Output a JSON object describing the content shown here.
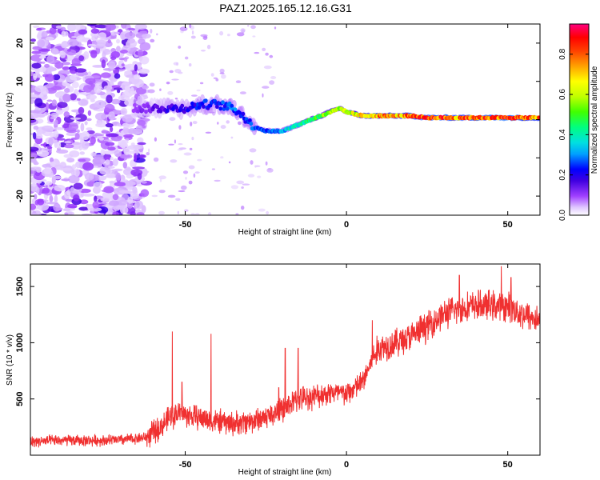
{
  "figure": {
    "title": "PAZ1.2025.165.12.16.G31"
  },
  "chart_data": [
    {
      "type": "heatmap",
      "panel": "top",
      "xlabel": "Height of straight line (km)",
      "ylabel": "Frequency (Hz)",
      "xlim": [
        -98,
        60
      ],
      "ylim": [
        -25,
        25
      ],
      "xticks": [
        -50,
        0,
        50
      ],
      "yticks": [
        -20,
        -10,
        0,
        10,
        20
      ],
      "colorbar": {
        "label": "Normalized spectral amplitude",
        "range": [
          0.0,
          0.95
        ],
        "ticks": [
          "0.0",
          "0.2",
          "0.4",
          "0.6",
          "0.8"
        ],
        "colormap": [
          "#ffffff",
          "#d8b8ff",
          "#a040ff",
          "#5000e0",
          "#0000ff",
          "#00a0ff",
          "#00e0e0",
          "#00ff80",
          "#40ff00",
          "#c0ff00",
          "#ffff00",
          "#ffa000",
          "#ff4000",
          "#ff0000",
          "#ff0080"
        ]
      },
      "ridge": {
        "x": [
          -66,
          -60,
          -55,
          -50,
          -45,
          -40,
          -35,
          -32,
          -30,
          -28,
          -25,
          -22,
          -20,
          -17,
          -14,
          -11,
          -8,
          -5,
          -2,
          0,
          5,
          10,
          15,
          20,
          25,
          30,
          35,
          40,
          45,
          50,
          55,
          60
        ],
        "frequency": [
          3,
          3,
          3,
          3,
          4,
          4,
          3,
          1,
          -1,
          -2,
          -3,
          -3,
          -3,
          -2,
          -1,
          0,
          1,
          2,
          3,
          2,
          1,
          1,
          1,
          1,
          0.5,
          0.5,
          0.5,
          0.5,
          0.5,
          0.5,
          0.5,
          0.5
        ],
        "amplitude": [
          0.15,
          0.2,
          0.25,
          0.25,
          0.3,
          0.3,
          0.35,
          0.3,
          0.3,
          0.35,
          0.35,
          0.35,
          0.4,
          0.45,
          0.5,
          0.55,
          0.6,
          0.65,
          0.6,
          0.65,
          0.75,
          0.85,
          0.8,
          0.85,
          0.9,
          0.9,
          0.85,
          0.9,
          0.9,
          0.95,
          0.85,
          0.85
        ]
      },
      "noise_region_x": [
        -98,
        -62
      ]
    },
    {
      "type": "line",
      "panel": "bottom",
      "xlabel": "Height of straight line (km)",
      "ylabel": "SNR (10 * v/v)",
      "xlim": [
        -98,
        60
      ],
      "ylim": [
        0,
        1700
      ],
      "xticks": [
        -50,
        0,
        50
      ],
      "yticks": [
        500,
        1000,
        1500
      ],
      "series": [
        {
          "color": "#f03030",
          "envelope_x": [
            -98,
            -90,
            -80,
            -70,
            -62,
            -58,
            -55,
            -52,
            -50,
            -45,
            -40,
            -35,
            -30,
            -25,
            -20,
            -15,
            -10,
            -5,
            0,
            5,
            8,
            10,
            15,
            20,
            25,
            30,
            35,
            40,
            45,
            50,
            55,
            60
          ],
          "envelope_mean": [
            120,
            130,
            130,
            135,
            160,
            240,
            330,
            380,
            360,
            330,
            300,
            280,
            300,
            340,
            400,
            500,
            520,
            560,
            540,
            650,
            850,
            950,
            1000,
            1050,
            1150,
            1250,
            1300,
            1330,
            1330,
            1320,
            1250,
            1200
          ],
          "spikes": [
            {
              "x": -54,
              "value": 1100
            },
            {
              "x": -51,
              "value": 650
            },
            {
              "x": -42,
              "value": 1080
            },
            {
              "x": -21,
              "value": 600
            },
            {
              "x": -19,
              "value": 950
            },
            {
              "x": -15,
              "value": 950
            },
            {
              "x": 8,
              "value": 1200
            },
            {
              "x": 35,
              "value": 1600
            },
            {
              "x": 48,
              "value": 1680
            },
            {
              "x": 51,
              "value": 1580
            }
          ]
        }
      ]
    }
  ]
}
